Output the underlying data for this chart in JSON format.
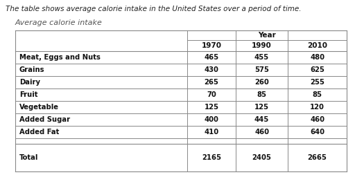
{
  "title_text": "The table shows average calorie intake in the United States over a period of time.",
  "subtitle": "Average calorie intake",
  "col_header_top": "Year",
  "col_headers": [
    "1970",
    "1990",
    "2010"
  ],
  "row_labels": [
    "Meat, Eggs and Nuts",
    "Grains",
    "Dairy",
    "Fruit",
    "Vegetable",
    "Added Sugar",
    "Added Fat",
    "",
    "Total"
  ],
  "data": [
    [
      "465",
      "455",
      "480"
    ],
    [
      "430",
      "575",
      "625"
    ],
    [
      "265",
      "260",
      "255"
    ],
    [
      "70",
      "85",
      "85"
    ],
    [
      "125",
      "125",
      "120"
    ],
    [
      "400",
      "445",
      "460"
    ],
    [
      "410",
      "460",
      "640"
    ],
    [
      "",
      "",
      ""
    ],
    [
      "2165",
      "2405",
      "2665"
    ]
  ],
  "bg_color": "#ffffff",
  "line_color": "#888888",
  "title_fontsize": 7.5,
  "subtitle_fontsize": 8.0,
  "cell_fontsize": 7.2,
  "header_fontsize": 7.5
}
